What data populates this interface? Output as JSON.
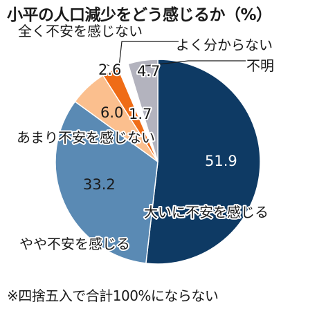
{
  "title": "小平の人口減少をどう感じるか（%）",
  "note": "※四捨五入で合計100%にならない",
  "chart_data": {
    "type": "pie",
    "slices": [
      {
        "label": "大いに不安を感じる",
        "value": 51.9,
        "value_label": "51.9",
        "color": "#0e3a64"
      },
      {
        "label": "やや不安を感じる",
        "value": 33.2,
        "value_label": "33.2",
        "color": "#5a8ab4"
      },
      {
        "label": "あまり不安を感じない",
        "value": 6.0,
        "value_label": "6.0",
        "color": "#fbbf8e"
      },
      {
        "label": "全く不安を感じない",
        "value": 2.6,
        "value_label": "2.6",
        "color": "#ef6c16"
      },
      {
        "label": "よく分からない",
        "value": 1.7,
        "value_label": "1.7",
        "color": "#ffffff"
      },
      {
        "label": "不明",
        "value": 4.7,
        "value_label": "4.7",
        "color": "#b3b3be"
      }
    ],
    "slice_order": "clockwise from 12 o'clock: 大いに不安を感じる, やや不安を感じる, あまり不安を感じない, 全く不安を感じない, よく分からない, 不明"
  }
}
